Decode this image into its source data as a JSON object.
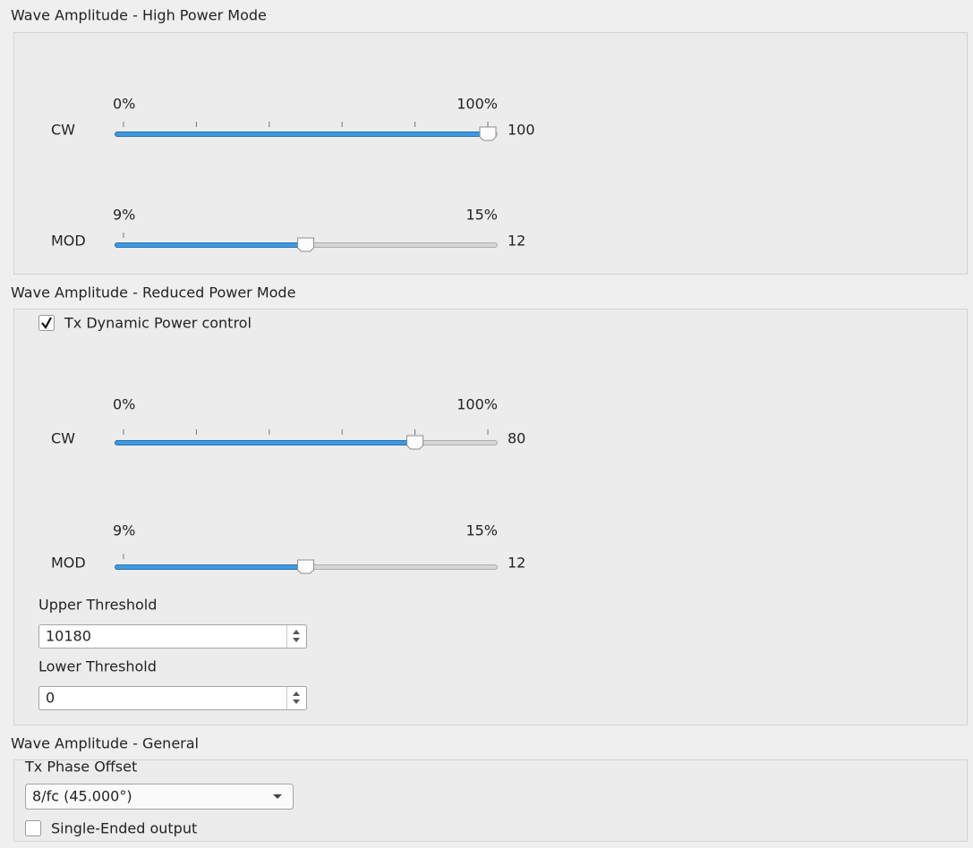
{
  "groups": [
    {
      "title": "Wave Amplitude - High Power Mode",
      "sliders": [
        {
          "label": "CW",
          "min": {
            "value": 0,
            "label": "0%"
          },
          "max": {
            "value": 100,
            "label": "100%"
          },
          "value": 100
        },
        {
          "label": "MOD",
          "min": {
            "value": 9,
            "label": "9%"
          },
          "max": {
            "value": 15,
            "label": "15%"
          },
          "value": 12
        }
      ]
    },
    {
      "title": "Wave Amplitude - Reduced Power Mode",
      "checkbox": {
        "label": "Tx Dynamic Power control",
        "checked": true
      },
      "sliders": [
        {
          "label": "CW",
          "min": {
            "value": 0,
            "label": "0%"
          },
          "max": {
            "value": 100,
            "label": "100%"
          },
          "value": 80
        },
        {
          "label": "MOD",
          "min": {
            "value": 9,
            "label": "9%"
          },
          "max": {
            "value": 15,
            "label": "15%"
          },
          "value": 12
        }
      ],
      "spinboxes": [
        {
          "label": "Upper Threshold",
          "value": 10180
        },
        {
          "label": "Lower Threshold",
          "value": 0
        }
      ]
    },
    {
      "title": "Wave Amplitude - General",
      "combo": {
        "label": "Tx Phase Offset",
        "value": "8/fc (45.000°)"
      },
      "checkbox": {
        "label": "Single-Ended output",
        "checked": false
      }
    }
  ]
}
